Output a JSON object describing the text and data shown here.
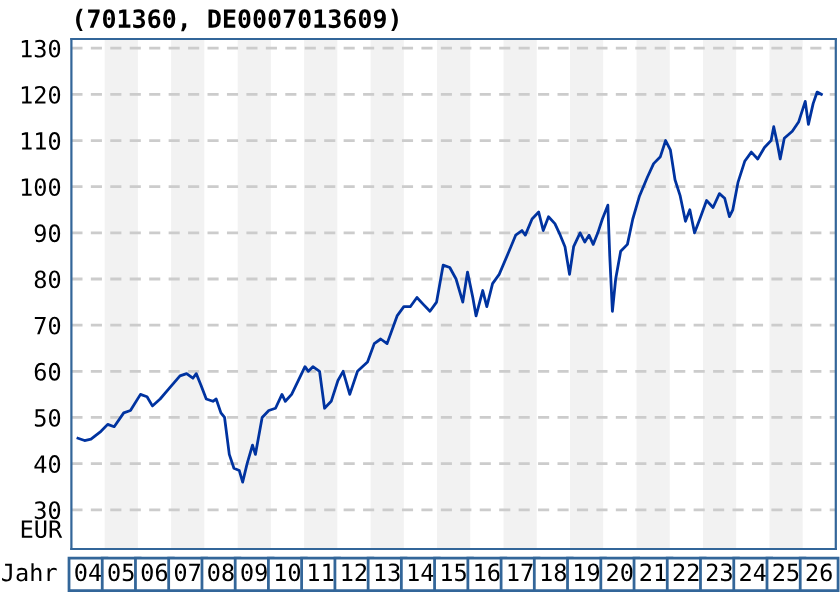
{
  "chart_data": {
    "type": "line",
    "title": "(701360, DE0007013609)",
    "xlabel": "Jahr",
    "ylabel": "EUR",
    "x": [
      "2004-03-13",
      "2004-05-25",
      "2004-08-03",
      "2004-11-21",
      "2005-02-03",
      "2005-04-15",
      "2005-07-29",
      "2005-10-11",
      "2006-01-29",
      "2006-04-11",
      "2006-06-09",
      "2006-09-02",
      "2006-12-20",
      "2007-04-08",
      "2007-06-20",
      "2007-08-28",
      "2007-10-04",
      "2007-11-25",
      "2008-01-22",
      "2008-04-04",
      "2008-05-10",
      "2008-07-01",
      "2008-08-10",
      "2008-10-01",
      "2008-11-21",
      "2009-01-19",
      "2009-02-25",
      "2009-04-15",
      "2009-06-13",
      "2009-07-15",
      "2009-09-27",
      "2009-12-09",
      "2010-02-21",
      "2010-05-03",
      "2010-06-09",
      "2010-08-17",
      "2010-10-29",
      "2011-01-11",
      "2011-02-17",
      "2011-04-08",
      "2011-06-20",
      "2011-08-14",
      "2011-10-26",
      "2012-01-08",
      "2012-03-05",
      "2012-05-17",
      "2012-08-10",
      "2012-11-28",
      "2013-02-10",
      "2013-04-22",
      "2013-07-01",
      "2013-10-19",
      "2014-01-01",
      "2014-03-13",
      "2014-05-25",
      "2014-08-03",
      "2014-10-15",
      "2014-12-27",
      "2015-03-09",
      "2015-05-21",
      "2015-07-29",
      "2015-10-11",
      "2015-12-02",
      "2016-01-29",
      "2016-03-05",
      "2016-05-17",
      "2016-07-01",
      "2016-09-02",
      "2016-11-14",
      "2017-03-02",
      "2017-05-14",
      "2017-07-22",
      "2017-08-28",
      "2017-11-10",
      "2018-01-22",
      "2018-03-13",
      "2018-05-10",
      "2018-07-19",
      "2018-09-16",
      "2018-11-07",
      "2018-12-27",
      "2019-02-10",
      "2019-04-22",
      "2019-06-13",
      "2019-07-29",
      "2019-09-13",
      "2019-11-03",
      "2019-12-23",
      "2020-02-21",
      "2020-03-13",
      "2020-04-11",
      "2020-05-17",
      "2020-07-11",
      "2020-09-23",
      "2020-11-21",
      "2021-02-03",
      "2021-04-29",
      "2021-07-08",
      "2021-09-20",
      "2021-11-17",
      "2022-01-08",
      "2022-02-28",
      "2022-04-26",
      "2022-06-23",
      "2022-08-10",
      "2022-10-01",
      "2022-11-28",
      "2023-02-10",
      "2023-04-22",
      "2023-07-01",
      "2023-08-28",
      "2023-10-19",
      "2023-11-25",
      "2024-01-22",
      "2024-04-04",
      "2024-06-16",
      "2024-08-25",
      "2024-11-07",
      "2025-01-19",
      "2025-02-17",
      "2025-04-01",
      "2025-04-29",
      "2025-06-13",
      "2025-09-09",
      "2025-11-17",
      "2026-01-29",
      "2026-03-05",
      "2026-04-26",
      "2026-06-09",
      "2026-07-26"
    ],
    "series": [
      {
        "color": "#0033a0",
        "values": [
          45.5,
          45,
          45.3,
          47,
          48.5,
          48,
          51,
          51.5,
          55,
          54.5,
          52.5,
          54,
          56.5,
          59,
          59.5,
          58.5,
          59.5,
          57,
          54,
          53.5,
          54,
          51,
          50,
          42,
          39,
          38.5,
          36,
          40,
          44,
          42,
          50,
          51.5,
          52,
          55,
          53.5,
          55,
          58,
          61,
          60,
          61,
          60,
          52,
          53.5,
          58,
          60,
          55,
          60,
          62,
          66,
          67,
          66,
          72,
          74,
          74,
          76,
          74.5,
          73,
          75,
          83,
          82.5,
          80,
          75,
          81.5,
          76,
          72,
          77.5,
          74,
          79,
          81,
          86,
          89.5,
          90.5,
          89.5,
          93,
          94.5,
          90.5,
          93.5,
          92,
          89.5,
          87,
          81,
          87,
          90,
          88,
          89.5,
          87.5,
          90,
          93,
          96,
          85,
          73,
          80,
          86,
          87.5,
          93,
          98,
          102,
          105,
          106.5,
          110,
          108,
          101.5,
          98,
          92.5,
          95,
          90,
          93,
          97,
          95.5,
          98.5,
          97.5,
          93.5,
          95,
          101,
          105.5,
          107.5,
          106,
          108.5,
          110,
          113,
          109,
          106,
          110.5,
          112,
          114,
          118.5,
          113.5,
          118,
          120.5,
          120
        ]
      }
    ],
    "xlim": [
      "2004-01-01",
      "2026-12-31"
    ],
    "ylim": [
      21.5,
      132
    ],
    "xticks": [
      {
        "value": "2004-07-01",
        "label": "04"
      },
      {
        "value": "2005-07-01",
        "label": "05"
      },
      {
        "value": "2006-07-01",
        "label": "06"
      },
      {
        "value": "2007-07-01",
        "label": "07"
      },
      {
        "value": "2008-07-01",
        "label": "08"
      },
      {
        "value": "2009-07-01",
        "label": "09"
      },
      {
        "value": "2010-07-01",
        "label": "10"
      },
      {
        "value": "2011-07-01",
        "label": "11"
      },
      {
        "value": "2012-07-01",
        "label": "12"
      },
      {
        "value": "2013-07-01",
        "label": "13"
      },
      {
        "value": "2014-07-01",
        "label": "14"
      },
      {
        "value": "2015-07-01",
        "label": "15"
      },
      {
        "value": "2016-07-01",
        "label": "16"
      },
      {
        "value": "2017-07-01",
        "label": "17"
      },
      {
        "value": "2018-07-01",
        "label": "18"
      },
      {
        "value": "2019-07-01",
        "label": "19"
      },
      {
        "value": "2020-07-01",
        "label": "20"
      },
      {
        "value": "2021-07-01",
        "label": "21"
      },
      {
        "value": "2022-07-01",
        "label": "22"
      },
      {
        "value": "2023-07-01",
        "label": "23"
      },
      {
        "value": "2024-07-01",
        "label": "24"
      },
      {
        "value": "2025-07-01",
        "label": "25"
      },
      {
        "value": "2026-07-01",
        "label": "26"
      }
    ],
    "yticks": [
      30,
      40,
      50,
      60,
      70,
      80,
      90,
      100,
      110,
      120,
      130
    ],
    "grid": "y",
    "legend": false,
    "marker": "none",
    "line_style": "solid",
    "bands": [
      {
        "axis": "x",
        "from": "2005-01-01",
        "to": "2006-01-01",
        "color": "#f2f2f2"
      },
      {
        "axis": "x",
        "from": "2007-01-01",
        "to": "2008-01-01",
        "color": "#f2f2f2"
      },
      {
        "axis": "x",
        "from": "2009-01-01",
        "to": "2010-01-01",
        "color": "#f2f2f2"
      },
      {
        "axis": "x",
        "from": "2011-01-01",
        "to": "2012-01-01",
        "color": "#f2f2f2"
      },
      {
        "axis": "x",
        "from": "2013-01-01",
        "to": "2014-01-01",
        "color": "#f2f2f2"
      },
      {
        "axis": "x",
        "from": "2015-01-01",
        "to": "2016-01-01",
        "color": "#f2f2f2"
      },
      {
        "axis": "x",
        "from": "2017-01-01",
        "to": "2018-01-01",
        "color": "#f2f2f2"
      },
      {
        "axis": "x",
        "from": "2019-01-01",
        "to": "2020-01-01",
        "color": "#f2f2f2"
      },
      {
        "axis": "x",
        "from": "2021-01-01",
        "to": "2022-01-01",
        "color": "#f2f2f2"
      },
      {
        "axis": "x",
        "from": "2023-01-01",
        "to": "2024-01-01",
        "color": "#f2f2f2"
      },
      {
        "axis": "x",
        "from": "2025-01-01",
        "to": "2026-01-01",
        "color": "#f2f2f2"
      }
    ]
  }
}
